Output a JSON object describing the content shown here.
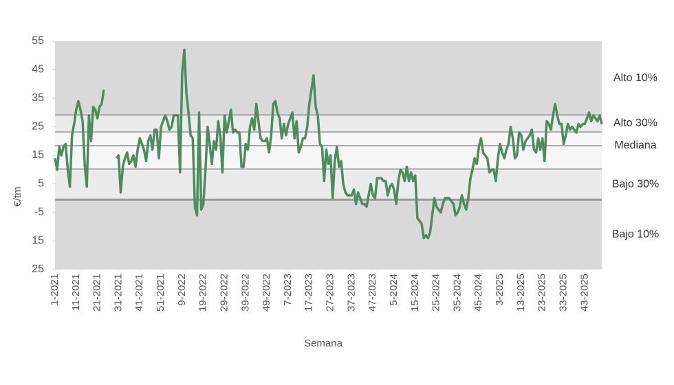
{
  "chart_data": {
    "type": "line",
    "x_label": "Semana",
    "y_label": "€/tm",
    "categories": [
      "1-2021",
      null,
      null,
      null,
      null,
      null,
      null,
      null,
      null,
      null,
      "11-2021",
      null,
      null,
      null,
      null,
      null,
      null,
      null,
      null,
      null,
      "21-2021",
      null,
      null,
      null,
      null,
      null,
      null,
      null,
      null,
      null,
      "31-2021",
      null,
      null,
      null,
      null,
      null,
      null,
      null,
      null,
      null,
      "41-2021",
      null,
      null,
      null,
      null,
      null,
      null,
      null,
      null,
      null,
      "51-2021",
      null,
      null,
      null,
      null,
      null,
      null,
      null,
      null,
      null,
      "9-2022",
      null,
      null,
      null,
      null,
      null,
      null,
      null,
      null,
      null,
      "19-2022",
      null,
      null,
      null,
      null,
      null,
      null,
      null,
      null,
      null,
      "29-2022",
      null,
      null,
      null,
      null,
      null,
      null,
      null,
      null,
      null,
      "39-2022",
      null,
      null,
      null,
      null,
      null,
      null,
      null,
      null,
      null,
      "49-2022",
      null,
      null,
      null,
      null,
      null,
      null,
      null,
      null,
      null,
      "7-2023",
      null,
      null,
      null,
      null,
      null,
      null,
      null,
      null,
      null,
      "17-2023",
      null,
      null,
      null,
      null,
      null,
      null,
      null,
      null,
      null,
      "27-2023",
      null,
      null,
      null,
      null,
      null,
      null,
      null,
      null,
      null,
      "37-2023",
      null,
      null,
      null,
      null,
      null,
      null,
      null,
      null,
      null,
      "47-2023",
      null,
      null,
      null,
      null,
      null,
      null,
      null,
      null,
      null,
      "5-2024",
      null,
      null,
      null,
      null,
      null,
      null,
      null,
      null,
      null,
      "15-2024",
      null,
      null,
      null,
      null,
      null,
      null,
      null,
      null,
      null,
      "25-2024",
      null,
      null,
      null,
      null,
      null,
      null,
      null,
      null,
      null,
      "35-2024",
      null,
      null,
      null,
      null,
      null,
      null,
      null,
      null,
      null,
      "45-2024",
      null,
      null,
      null,
      null,
      null,
      null,
      null,
      null,
      null,
      "3-2025",
      null,
      null,
      null,
      null,
      null,
      null,
      null,
      null,
      null,
      "13-2025",
      null,
      null,
      null,
      null,
      null,
      null,
      null,
      null,
      null,
      "23-2025",
      null,
      null,
      null,
      null,
      null,
      null,
      null,
      null,
      null,
      "33-2025",
      null,
      null,
      null,
      null,
      null,
      null,
      null,
      null,
      null,
      "43-2025",
      null,
      null,
      null,
      null,
      null,
      null,
      null,
      null
    ],
    "series": [
      {
        "color": "#4e8b5f",
        "values": [
          14,
          10,
          18,
          15,
          18,
          19,
          10,
          4,
          22,
          26,
          31,
          34,
          31,
          27,
          12,
          4,
          29,
          20,
          32,
          31,
          28,
          32,
          33,
          38,
          null,
          null,
          null,
          null,
          null,
          14,
          15,
          2,
          11,
          14,
          16,
          12,
          13,
          15,
          11,
          17,
          21,
          19,
          17,
          13,
          20,
          22,
          17,
          24,
          24,
          14,
          25,
          27,
          29,
          27,
          24,
          25,
          29,
          29,
          29,
          9,
          44,
          52,
          37,
          30,
          22,
          21,
          -3,
          -6,
          30,
          -4,
          -2,
          10,
          25,
          19,
          12,
          20,
          17,
          27,
          22,
          9,
          29,
          23,
          27,
          31,
          23,
          24,
          23,
          23,
          11,
          11,
          19,
          17,
          25,
          28,
          24,
          33,
          27,
          21,
          20,
          20,
          21,
          16,
          22,
          33,
          34,
          30,
          28,
          21,
          26,
          22,
          26,
          28,
          30,
          21,
          27,
          16,
          18,
          21,
          21,
          25,
          33,
          38,
          43,
          32,
          29,
          19,
          18,
          6,
          17,
          12,
          15,
          0,
          13,
          18,
          11,
          13,
          5,
          2,
          1,
          1,
          1,
          3,
          -2,
          2,
          0,
          -2,
          -2,
          -3,
          1,
          5,
          1,
          0,
          7,
          7,
          7,
          6,
          6,
          1,
          4,
          5,
          3,
          -2,
          6,
          10,
          9,
          6,
          11,
          6,
          9,
          6,
          8,
          -7,
          -8,
          -9,
          -14,
          -13,
          -14,
          -12,
          -6,
          0,
          -3,
          -4,
          -5,
          -2,
          0,
          0,
          0,
          -1,
          -2,
          -6,
          -5,
          -3,
          1,
          -2,
          -4,
          0,
          7,
          10,
          14,
          12,
          18,
          21,
          16,
          15,
          14,
          9,
          10,
          10,
          6,
          14,
          19,
          16,
          14,
          17,
          19,
          25,
          21,
          14,
          15,
          23,
          22,
          17,
          20,
          21,
          22,
          24,
          17,
          16,
          21,
          17,
          21,
          13,
          27,
          26,
          24,
          29,
          33,
          29,
          26,
          26,
          19,
          22,
          26,
          24,
          25,
          24,
          23,
          26,
          25,
          26,
          26,
          28,
          30,
          27,
          29,
          28,
          27,
          29,
          26
        ]
      }
    ],
    "ylim": [
      -25,
      55
    ],
    "yticks": [
      55,
      45,
      35,
      25,
      15,
      5,
      -5,
      {
        "value": -15,
        "label": "15"
      },
      {
        "value": -25,
        "label": "25"
      }
    ],
    "reference_lines": [
      {
        "name": "Alto 10%",
        "value": 29.2
      },
      {
        "name": "Alto 30%",
        "value": 23.2
      },
      {
        "name": "Mediana",
        "value": 18.4
      },
      {
        "name": "Bajo 30%",
        "value": 10.2
      },
      {
        "name": "Bajo 10%",
        "value": -0.5
      }
    ]
  }
}
